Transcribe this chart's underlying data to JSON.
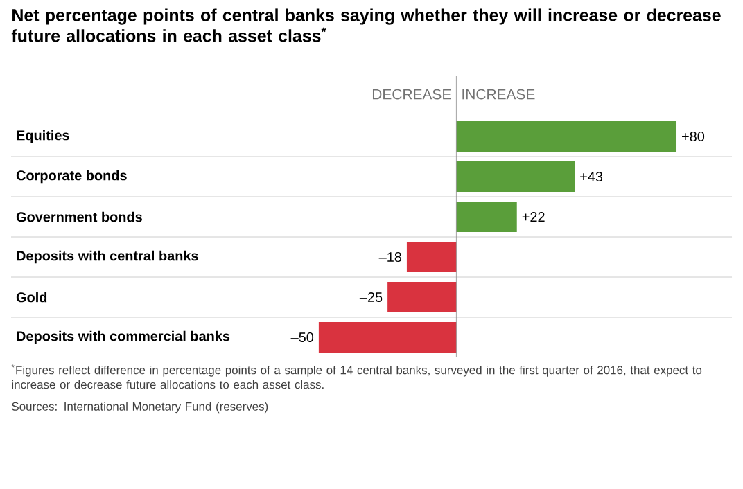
{
  "chart_data": {
    "type": "bar",
    "orientation": "horizontal",
    "title": "Net percentage points of central banks saying whether they will increase or decrease future allocations in each asset class$^{*}$",
    "categories": [
      "Equities",
      "Corporate bonds",
      "Government bonds",
      "Deposits with central banks",
      "Gold",
      "Deposits with commercial banks"
    ],
    "values": [
      80,
      43,
      22,
      -18,
      -25,
      -50
    ],
    "colors": [
      "#5a9e3a",
      "#5a9e3a",
      "#5a9e3a",
      "#d9333f",
      "#d9333f",
      "#d9333f"
    ],
    "value_labels": [
      "+80",
      "+43",
      "+22",
      "–18",
      "–25",
      "–50"
    ],
    "annotations": [
      "DECREASE",
      "INCREASE",
      "$^{*}$Figures reflect difference in percentage points of a sample of 14 central banks, surveyed in the first quarter of 2016, that expect to increase or decrease future allocations to each asset class.",
      "Sources: International Monetary Fund (reserves)"
    ]
  }
}
